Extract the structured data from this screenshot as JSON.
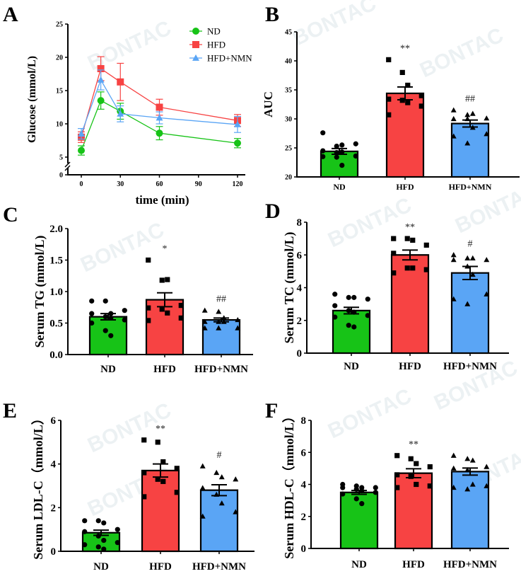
{
  "figure": {
    "panel_labels": [
      "A",
      "B",
      "C",
      "D",
      "E",
      "F"
    ],
    "watermark": "BONTAC",
    "group_colors": {
      "ND": "#17c317",
      "HFD": "#f74343",
      "HFD+NMN": "#5aa5f5"
    }
  },
  "chart_data": [
    {
      "panel": "A",
      "type": "line",
      "title": "",
      "xlabel": "time (min)",
      "ylabel": "Glucose (mmol/L)",
      "x": [
        0,
        15,
        30,
        60,
        120
      ],
      "xticks": [
        "0",
        "30",
        "60",
        "90",
        "120"
      ],
      "xtick_values": [
        0,
        30,
        60,
        90,
        120
      ],
      "xlim": [
        -5,
        125
      ],
      "yticks": [
        "0",
        "5",
        "10",
        "15",
        "20",
        "25"
      ],
      "ylim": [
        0,
        25
      ],
      "y_axis_break": "between 0 and 5",
      "legend_position": "top-right",
      "series": [
        {
          "name": "ND",
          "marker": "circle",
          "color": "#17c317",
          "values": [
            6.0,
            13.5,
            11.9,
            8.6,
            7.1
          ],
          "errors": [
            0.7,
            1.3,
            1.2,
            1.0,
            0.7
          ]
        },
        {
          "name": "HFD",
          "marker": "square",
          "color": "#f74343",
          "values": [
            8.0,
            18.3,
            16.3,
            12.5,
            10.5
          ],
          "errors": [
            0.8,
            1.8,
            2.8,
            1.2,
            0.9
          ]
        },
        {
          "name": "HFD+NMN",
          "marker": "triangle",
          "color": "#5aa5f5",
          "values": [
            8.5,
            16.6,
            11.5,
            10.9,
            9.9
          ],
          "errors": [
            0.8,
            1.5,
            1.2,
            0.9,
            1.2
          ]
        }
      ]
    },
    {
      "panel": "B",
      "type": "bar",
      "ylabel": "AUC",
      "categories": [
        "ND",
        "HFD",
        "HFD+NMN"
      ],
      "values": [
        24.4,
        34.4,
        29.2
      ],
      "errors": [
        0.5,
        1.1,
        0.6
      ],
      "ylim": [
        20,
        45
      ],
      "yticks": [
        "20",
        "25",
        "30",
        "35",
        "40",
        "45"
      ],
      "significance": [
        "",
        "**",
        "##"
      ],
      "points": [
        [
          27.6,
          25.3,
          25.5,
          25.7,
          24.5,
          24.2,
          24.3,
          23.6,
          23.5,
          23.4,
          22.0
        ],
        [
          40.2,
          38.0,
          35.8,
          34.0,
          33.4,
          33.2,
          32.8,
          32.2,
          30.7
        ],
        [
          31.5,
          30.7,
          30.9,
          30.1,
          30.0,
          30.0,
          28.5,
          27.4,
          27.0,
          25.8
        ]
      ]
    },
    {
      "panel": "C",
      "type": "bar",
      "ylabel": "Serum TG (mmol/L)",
      "categories": [
        "ND",
        "HFD",
        "HFD+NMN"
      ],
      "values": [
        0.6,
        0.87,
        0.55
      ],
      "errors": [
        0.05,
        0.11,
        0.03
      ],
      "ylim": [
        0,
        2.0
      ],
      "yticks": [
        "0.0",
        "0.5",
        "1.0",
        "1.5",
        "2.0"
      ],
      "significance": [
        "",
        "*",
        "##"
      ],
      "points": [
        [
          0.85,
          0.85,
          0.65,
          0.7,
          0.65,
          0.6,
          0.58,
          0.55,
          0.5,
          0.38,
          0.3
        ],
        [
          1.5,
          1.18,
          1.19,
          0.78,
          0.74,
          0.72,
          0.66,
          0.58,
          0.54
        ],
        [
          0.7,
          0.68,
          0.58,
          0.55,
          0.52,
          0.52,
          0.52,
          0.42,
          0.42,
          0.42
        ]
      ]
    },
    {
      "panel": "D",
      "type": "bar",
      "ylabel": "Serum TC (mmol/L)",
      "categories": [
        "ND",
        "HFD",
        "HFD+NMN"
      ],
      "values": [
        2.6,
        6.0,
        4.9
      ],
      "errors": [
        0.2,
        0.3,
        0.4
      ],
      "ylim": [
        0,
        8
      ],
      "yticks": [
        "0",
        "2",
        "4",
        "6",
        "8"
      ],
      "significance": [
        "",
        "**",
        "#"
      ],
      "points": [
        [
          3.6,
          3.4,
          3.4,
          3.3,
          2.9,
          2.6,
          2.5,
          2.3,
          2.2,
          1.7,
          1.6
        ],
        [
          7.0,
          7.0,
          6.9,
          6.6,
          6.1,
          5.2,
          5.2,
          5.1,
          4.9
        ],
        [
          6.0,
          5.8,
          5.8,
          5.7,
          5.7,
          5.3,
          4.8,
          3.6,
          3.3,
          3.0
        ]
      ]
    },
    {
      "panel": "E",
      "type": "bar",
      "ylabel": "Serum LDL-C（mmol/L）",
      "categories": [
        "ND",
        "HFD",
        "HFD+NMN"
      ],
      "values": [
        0.85,
        3.7,
        2.8
      ],
      "errors": [
        0.12,
        0.3,
        0.25
      ],
      "ylim": [
        0,
        6
      ],
      "yticks": [
        "0",
        "2",
        "4",
        "6"
      ],
      "significance": [
        "",
        "**",
        "#"
      ],
      "points": [
        [
          1.4,
          1.4,
          1.3,
          1.0,
          0.9,
          0.7,
          0.5,
          0.4,
          0.3,
          0.2,
          0.1
        ],
        [
          5.1,
          5.0,
          4.1,
          3.8,
          3.6,
          3.3,
          3.2,
          2.7,
          2.5
        ],
        [
          3.9,
          3.6,
          3.4,
          3.3,
          2.9,
          2.6,
          2.2,
          1.8,
          1.6
        ]
      ]
    },
    {
      "panel": "F",
      "type": "bar",
      "ylabel": "Serum HDL-C（mmol/L）",
      "categories": [
        "ND",
        "HFD",
        "HFD+NMN"
      ],
      "values": [
        3.5,
        4.7,
        4.8
      ],
      "errors": [
        0.12,
        0.28,
        0.22
      ],
      "ylim": [
        0,
        8
      ],
      "yticks": [
        "0",
        "2",
        "4",
        "6",
        "8"
      ],
      "significance": [
        "",
        "**",
        ""
      ],
      "points": [
        [
          4.0,
          3.9,
          3.8,
          3.8,
          3.8,
          3.7,
          3.6,
          3.5,
          3.4,
          3.1,
          2.8
        ],
        [
          5.8,
          5.6,
          5.3,
          5.1,
          4.6,
          4.5,
          4.0,
          3.9,
          3.8
        ],
        [
          5.8,
          5.6,
          5.5,
          5.1,
          5.0,
          4.9,
          4.0,
          3.9,
          3.8,
          3.7
        ]
      ]
    }
  ]
}
